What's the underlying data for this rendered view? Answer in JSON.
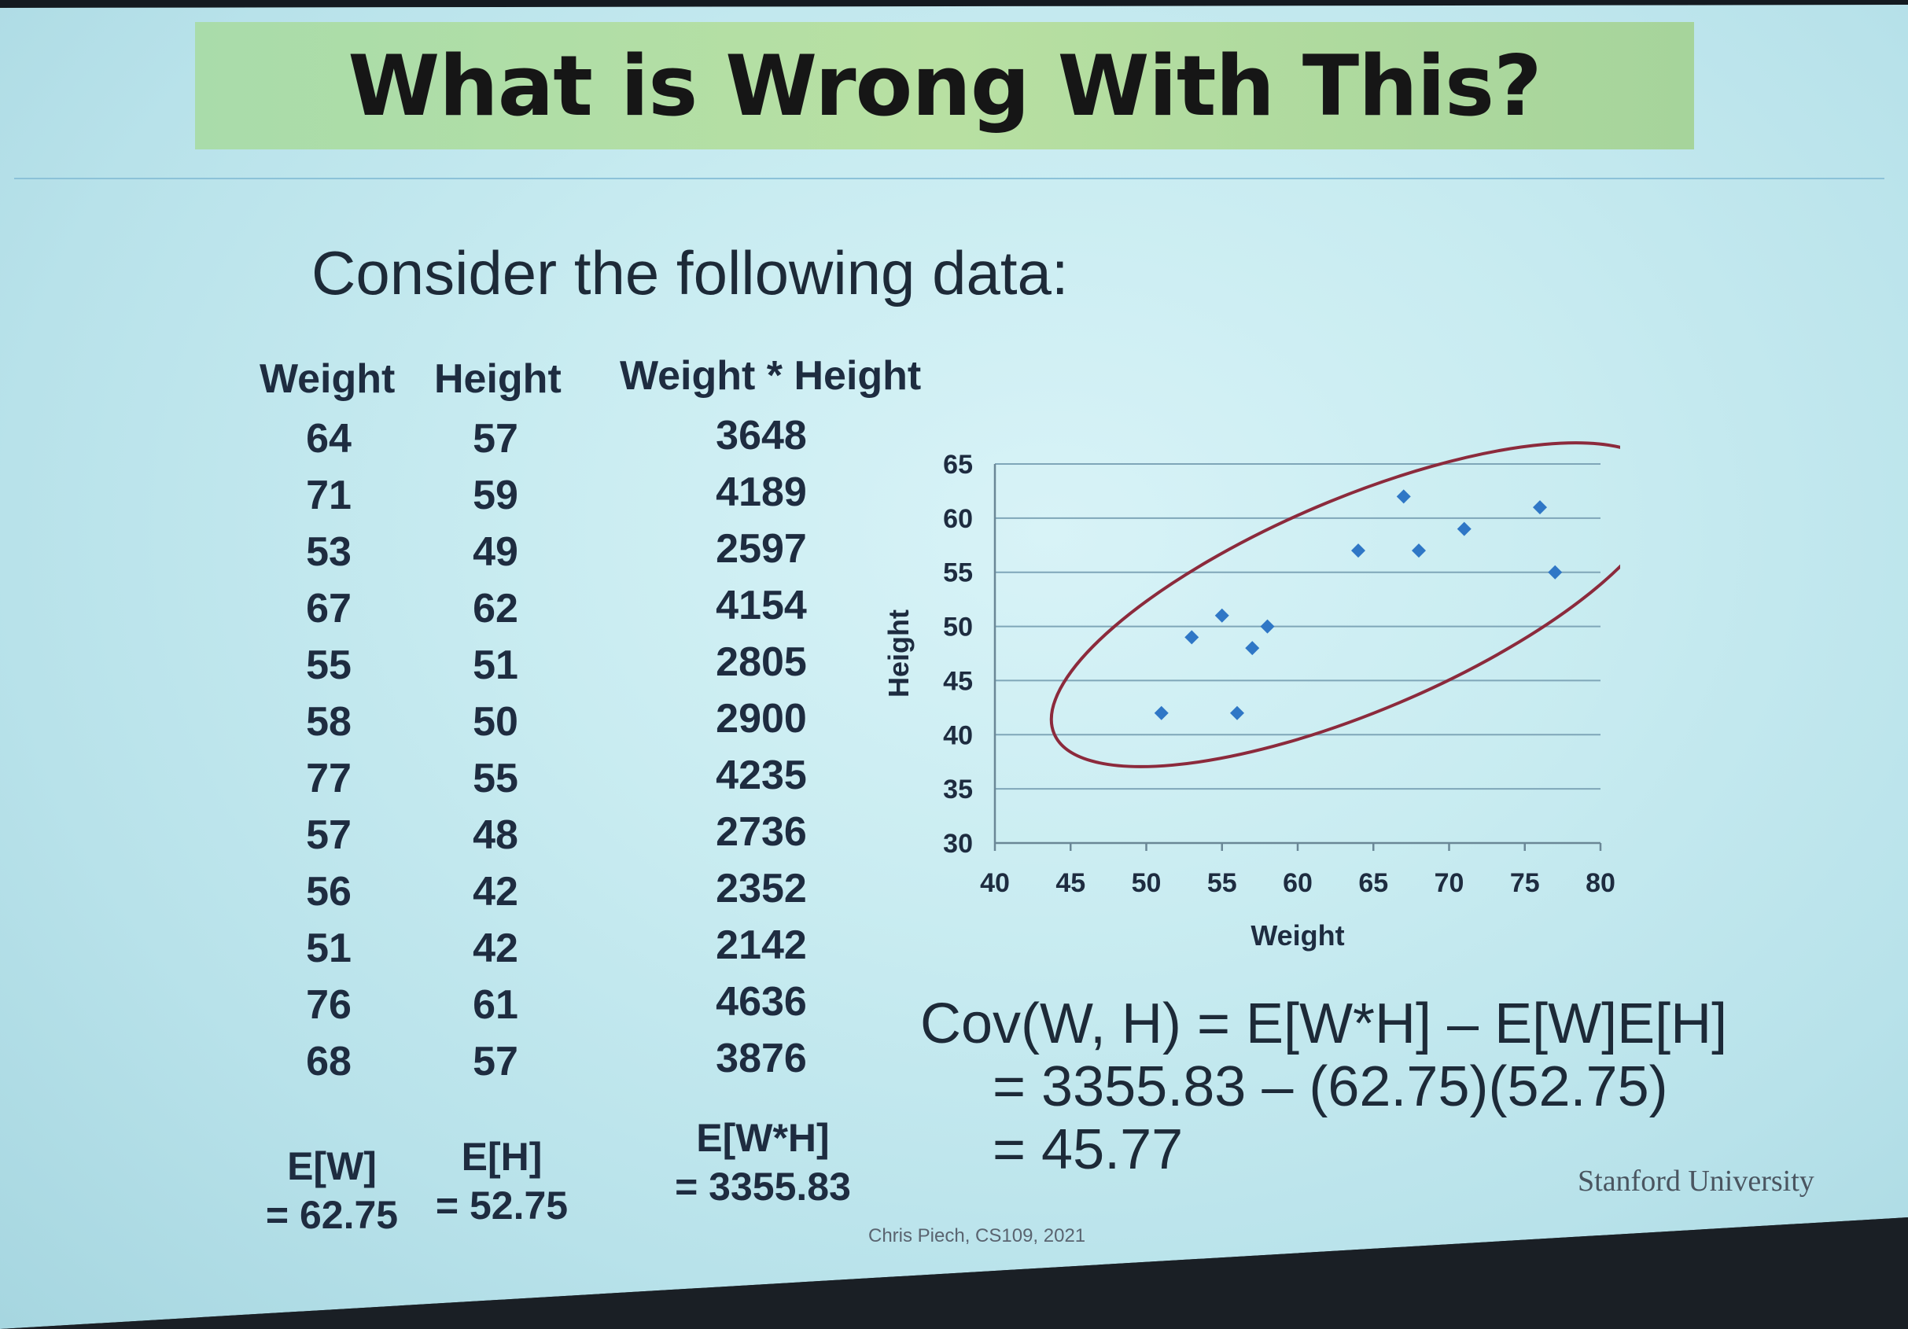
{
  "slide": {
    "title": "What is Wrong With This?",
    "subtitle": "Consider the following data:",
    "institution": "Stanford University",
    "credit": "Chris Piech, CS109, 2021"
  },
  "table": {
    "headers": [
      "Weight",
      "Height",
      "Weight * Height"
    ],
    "weight": [
      "64",
      "71",
      "53",
      "67",
      "55",
      "58",
      "77",
      "57",
      "56",
      "51",
      "76",
      "68"
    ],
    "height": [
      "57",
      "59",
      "49",
      "62",
      "51",
      "50",
      "55",
      "48",
      "42",
      "42",
      "61",
      "57"
    ],
    "product": [
      "3648",
      "4189",
      "2597",
      "4154",
      "2805",
      "2900",
      "4235",
      "2736",
      "2352",
      "2142",
      "4636",
      "3876"
    ]
  },
  "expectations": {
    "ew_label": "E[W]",
    "ew_value": "= 62.75",
    "eh_label": "E[H]",
    "eh_value": "= 52.75",
    "ewh_label": "E[W*H]",
    "ewh_value": "= 3355.83"
  },
  "formula": {
    "line1": "Cov(W, H) = E[W*H] – E[W]E[H]",
    "line2": "= 3355.83 – (62.75)(52.75)",
    "line3": "= 45.77"
  },
  "chart_data": {
    "type": "scatter",
    "xlabel": "Weight",
    "ylabel": "Height",
    "xlim": [
      40,
      80
    ],
    "ylim": [
      30,
      65
    ],
    "x_ticks": [
      "40",
      "45",
      "50",
      "55",
      "60",
      "65",
      "70",
      "75",
      "80"
    ],
    "y_ticks": [
      "30",
      "35",
      "40",
      "45",
      "50",
      "55",
      "60",
      "65"
    ],
    "grid": "horizontal",
    "marker_color": "#2f77c6",
    "annotation_color": "#8c2a3c",
    "points": [
      {
        "x": 64,
        "y": 57
      },
      {
        "x": 71,
        "y": 59
      },
      {
        "x": 53,
        "y": 49
      },
      {
        "x": 67,
        "y": 62
      },
      {
        "x": 55,
        "y": 51
      },
      {
        "x": 58,
        "y": 50
      },
      {
        "x": 77,
        "y": 55
      },
      {
        "x": 57,
        "y": 48
      },
      {
        "x": 56,
        "y": 42
      },
      {
        "x": 51,
        "y": 42
      },
      {
        "x": 76,
        "y": 61
      },
      {
        "x": 68,
        "y": 57
      }
    ]
  }
}
